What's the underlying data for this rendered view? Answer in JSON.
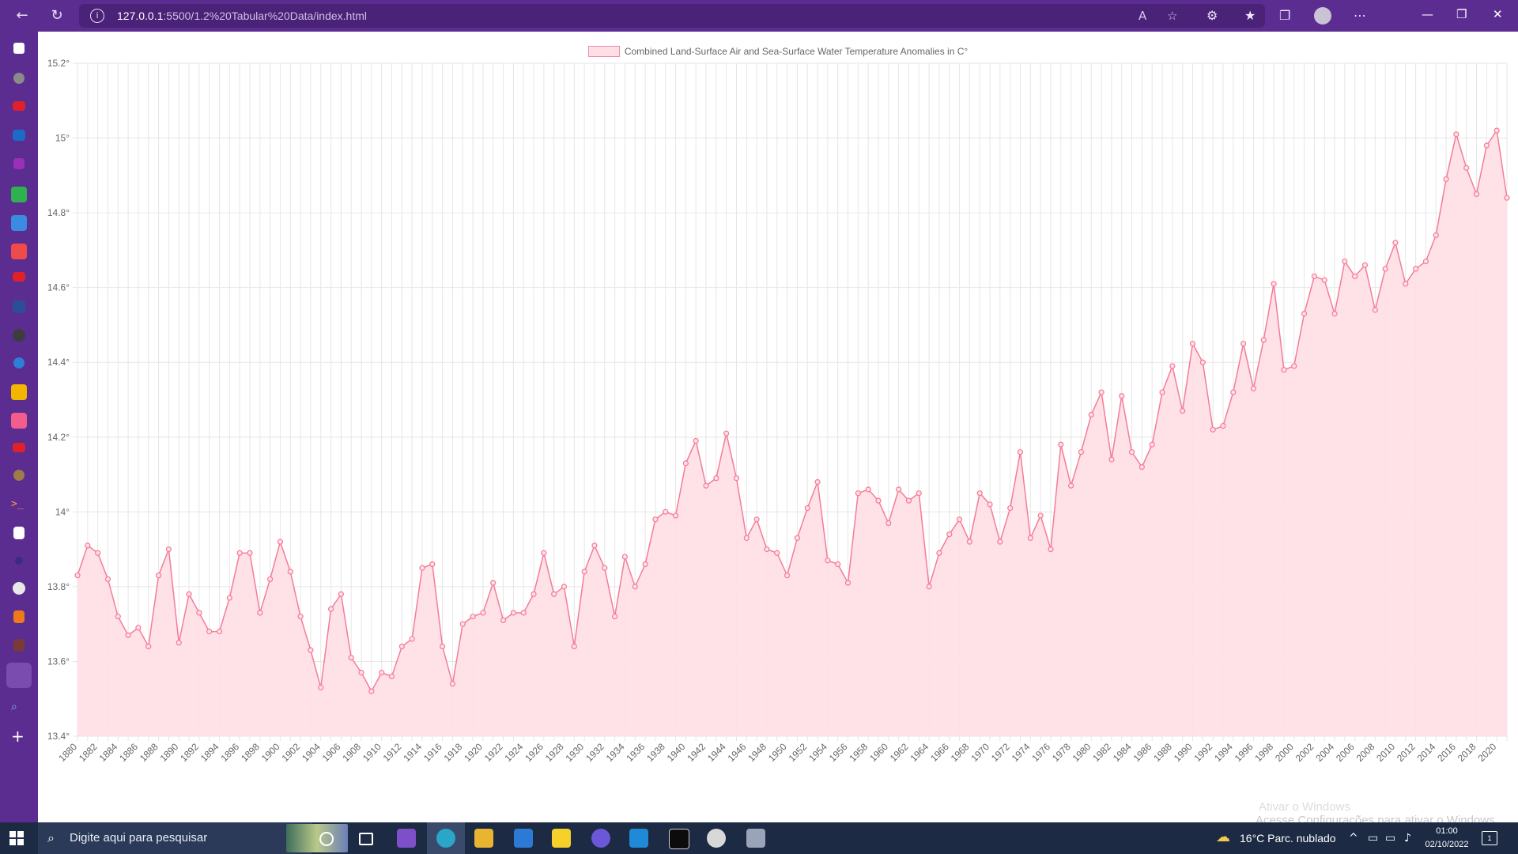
{
  "browser": {
    "url_host": "127.0.0.1",
    "url_path": ":5500/1.2%20Tabular%20Data/index.html"
  },
  "chart_data": {
    "type": "line",
    "legend": "Combined Land-Surface Air and Sea-Surface Water Temperature Anomalies in C°",
    "x": [
      1880,
      1881,
      1882,
      1883,
      1884,
      1885,
      1886,
      1887,
      1888,
      1889,
      1890,
      1891,
      1892,
      1893,
      1894,
      1895,
      1896,
      1897,
      1898,
      1899,
      1900,
      1901,
      1902,
      1903,
      1904,
      1905,
      1906,
      1907,
      1908,
      1909,
      1910,
      1911,
      1912,
      1913,
      1914,
      1915,
      1916,
      1917,
      1918,
      1919,
      1920,
      1921,
      1922,
      1923,
      1924,
      1925,
      1926,
      1927,
      1928,
      1929,
      1930,
      1931,
      1932,
      1933,
      1934,
      1935,
      1936,
      1937,
      1938,
      1939,
      1940,
      1941,
      1942,
      1943,
      1944,
      1945,
      1946,
      1947,
      1948,
      1949,
      1950,
      1951,
      1952,
      1953,
      1954,
      1955,
      1956,
      1957,
      1958,
      1959,
      1960,
      1961,
      1962,
      1963,
      1964,
      1965,
      1966,
      1967,
      1968,
      1969,
      1970,
      1971,
      1972,
      1973,
      1974,
      1975,
      1976,
      1977,
      1978,
      1979,
      1980,
      1981,
      1982,
      1983,
      1984,
      1985,
      1986,
      1987,
      1988,
      1989,
      1990,
      1991,
      1992,
      1993,
      1994,
      1995,
      1996,
      1997,
      1998,
      1999,
      2000,
      2001,
      2002,
      2003,
      2004,
      2005,
      2006,
      2007,
      2008,
      2009,
      2010,
      2011,
      2012,
      2013,
      2014,
      2015,
      2016,
      2017,
      2018,
      2019,
      2020,
      2021
    ],
    "y": [
      13.83,
      13.91,
      13.89,
      13.82,
      13.72,
      13.67,
      13.69,
      13.64,
      13.83,
      13.9,
      13.65,
      13.78,
      13.73,
      13.68,
      13.68,
      13.77,
      13.89,
      13.89,
      13.73,
      13.82,
      13.92,
      13.84,
      13.72,
      13.63,
      13.53,
      13.74,
      13.78,
      13.61,
      13.57,
      13.52,
      13.57,
      13.56,
      13.64,
      13.66,
      13.85,
      13.86,
      13.64,
      13.54,
      13.7,
      13.72,
      13.73,
      13.81,
      13.71,
      13.73,
      13.73,
      13.78,
      13.89,
      13.78,
      13.8,
      13.64,
      13.84,
      13.91,
      13.85,
      13.72,
      13.88,
      13.8,
      13.86,
      13.98,
      14.0,
      13.99,
      14.13,
      14.19,
      14.07,
      14.09,
      14.21,
      14.09,
      13.93,
      13.98,
      13.9,
      13.89,
      13.83,
      13.93,
      14.01,
      14.08,
      13.87,
      13.86,
      13.81,
      14.05,
      14.06,
      14.03,
      13.97,
      14.06,
      14.03,
      14.05,
      13.8,
      13.89,
      13.94,
      13.98,
      13.92,
      14.05,
      14.02,
      13.92,
      14.01,
      14.16,
      13.93,
      13.99,
      13.9,
      14.18,
      14.07,
      14.16,
      14.26,
      14.32,
      14.14,
      14.31,
      14.16,
      14.12,
      14.18,
      14.32,
      14.39,
      14.27,
      14.45,
      14.4,
      14.22,
      14.23,
      14.32,
      14.45,
      14.33,
      14.46,
      14.61,
      14.38,
      14.39,
      14.53,
      14.63,
      14.62,
      14.53,
      14.67,
      14.63,
      14.66,
      14.54,
      14.65,
      14.72,
      14.61,
      14.65,
      14.67,
      14.74,
      14.89,
      15.01,
      14.92,
      14.85,
      14.98,
      15.02,
      14.84
    ],
    "ylim": [
      13.4,
      15.2
    ],
    "yticks": [
      "13.4°",
      "13.6°",
      "13.8°",
      "14°",
      "14.2°",
      "14.4°",
      "14.6°",
      "14.8°",
      "15°",
      "15.2°"
    ],
    "grid": true,
    "legend_position": "top",
    "line_color": "#f47c97",
    "fill_color": "#ffdfe5"
  },
  "watermark": {
    "line1": "Ativar o Windows",
    "line2": "Acesse Configurações para ativar o Windows."
  },
  "taskbar": {
    "search_placeholder": "Digite aqui para pesquisar",
    "weather": "16°C  Parc. nublado",
    "time": "01:00",
    "date": "02/10/2022",
    "notification_count": "1"
  }
}
